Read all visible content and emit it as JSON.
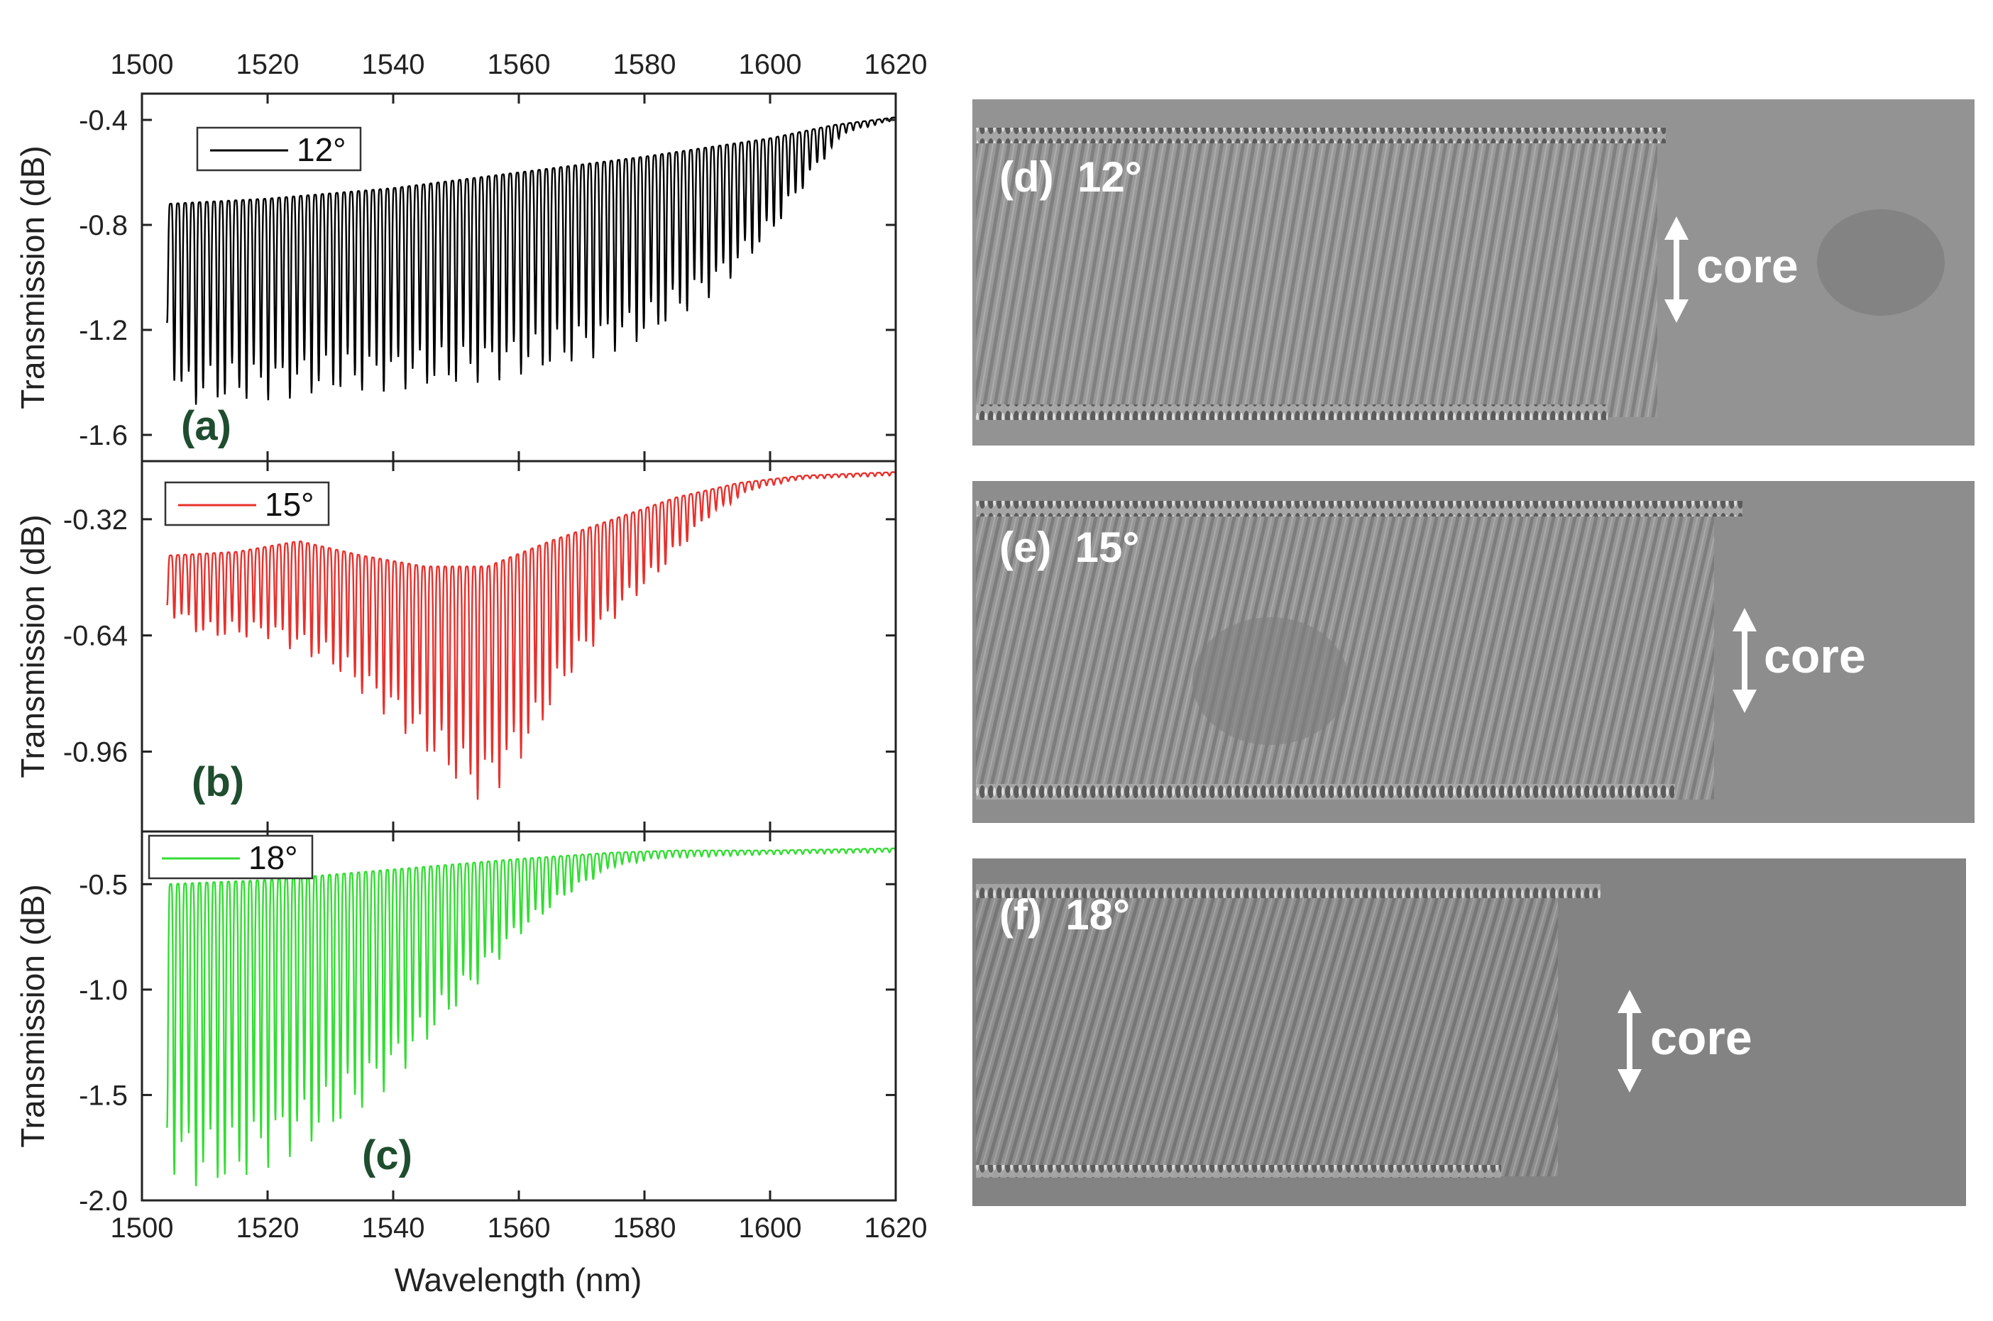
{
  "chart_data": [
    {
      "type": "line",
      "panel": "(a)",
      "series": [
        {
          "name": "12°",
          "color": "#000000"
        }
      ],
      "legend_label": "12°",
      "legend_position": "top-left",
      "ylabel": "Transmission (dB)",
      "xlabel": "",
      "xlim": [
        1500,
        1620
      ],
      "ylim": [
        -1.7,
        -0.3
      ],
      "x_ticks": [
        1500,
        1520,
        1540,
        1560,
        1580,
        1600,
        1620
      ],
      "x_tick_labels": [
        "1500",
        "1520",
        "1540",
        "1560",
        "1580",
        "1600",
        "1620"
      ],
      "x_tick_labels_position": "top",
      "y_ticks": [
        -0.4,
        -0.8,
        -1.2,
        -1.6
      ],
      "y_tick_labels": [
        "-0.4",
        "-0.8",
        "-1.2",
        "-1.6"
      ],
      "spectrum": {
        "start_nm": 1504,
        "end_nm": 1620,
        "period_nm": 1.15,
        "upper": [
          [
            1504,
            -0.72
          ],
          [
            1520,
            -0.7
          ],
          [
            1540,
            -0.66
          ],
          [
            1560,
            -0.6
          ],
          [
            1580,
            -0.54
          ],
          [
            1600,
            -0.47
          ],
          [
            1610,
            -0.42
          ],
          [
            1620,
            -0.39
          ]
        ],
        "lower": [
          [
            1504,
            -1.25
          ],
          [
            1506,
            -1.5
          ],
          [
            1520,
            -1.47
          ],
          [
            1535,
            -1.44
          ],
          [
            1550,
            -1.42
          ],
          [
            1565,
            -1.36
          ],
          [
            1580,
            -1.25
          ],
          [
            1592,
            -1.05
          ],
          [
            1600,
            -0.85
          ],
          [
            1607,
            -0.6
          ],
          [
            1612,
            -0.45
          ],
          [
            1620,
            -0.4
          ]
        ]
      }
    },
    {
      "type": "line",
      "panel": "(b)",
      "series": [
        {
          "name": "15°",
          "color": "#e8302c"
        }
      ],
      "legend_label": "15°",
      "legend_position": "top-left",
      "ylabel": "Transmission (dB)",
      "xlabel": "",
      "xlim": [
        1500,
        1620
      ],
      "ylim": [
        -1.18,
        -0.16
      ],
      "x_ticks": [
        1500,
        1520,
        1540,
        1560,
        1580,
        1600,
        1620
      ],
      "y_ticks": [
        -0.32,
        -0.64,
        -0.96
      ],
      "y_tick_labels": [
        "-0.32",
        "-0.64",
        "-0.96"
      ],
      "spectrum": {
        "start_nm": 1504,
        "end_nm": 1620,
        "period_nm": 1.15,
        "upper": [
          [
            1504,
            -0.42
          ],
          [
            1515,
            -0.41
          ],
          [
            1525,
            -0.38
          ],
          [
            1535,
            -0.42
          ],
          [
            1545,
            -0.45
          ],
          [
            1555,
            -0.45
          ],
          [
            1565,
            -0.38
          ],
          [
            1575,
            -0.32
          ],
          [
            1585,
            -0.26
          ],
          [
            1595,
            -0.22
          ],
          [
            1605,
            -0.2
          ],
          [
            1620,
            -0.19
          ]
        ],
        "lower": [
          [
            1504,
            -0.58
          ],
          [
            1510,
            -0.65
          ],
          [
            1520,
            -0.65
          ],
          [
            1530,
            -0.73
          ],
          [
            1540,
            -0.88
          ],
          [
            1548,
            -1.02
          ],
          [
            1553,
            -1.1
          ],
          [
            1556,
            -1.08
          ],
          [
            1562,
            -0.95
          ],
          [
            1568,
            -0.76
          ],
          [
            1575,
            -0.6
          ],
          [
            1582,
            -0.48
          ],
          [
            1590,
            -0.32
          ],
          [
            1597,
            -0.24
          ],
          [
            1605,
            -0.21
          ],
          [
            1620,
            -0.2
          ]
        ]
      }
    },
    {
      "type": "line",
      "panel": "(c)",
      "series": [
        {
          "name": "18°",
          "color": "#33dd33"
        }
      ],
      "legend_label": "18°",
      "legend_position": "top-left",
      "ylabel": "Transmission (dB)",
      "xlabel": "Wavelength (nm)",
      "xlim": [
        1500,
        1620
      ],
      "ylim": [
        -2.0,
        -0.25
      ],
      "x_ticks": [
        1500,
        1520,
        1540,
        1560,
        1580,
        1600,
        1620
      ],
      "x_tick_labels": [
        "1500",
        "1520",
        "1540",
        "1560",
        "1580",
        "1600",
        "1620"
      ],
      "y_ticks": [
        -0.5,
        -1.0,
        -1.5,
        -2.0
      ],
      "y_tick_labels": [
        "-0.5",
        "-1.0",
        "-1.5",
        "-2.0"
      ],
      "spectrum": {
        "start_nm": 1504,
        "end_nm": 1620,
        "period_nm": 1.15,
        "upper": [
          [
            1504,
            -0.5
          ],
          [
            1520,
            -0.48
          ],
          [
            1540,
            -0.43
          ],
          [
            1560,
            -0.38
          ],
          [
            1575,
            -0.35
          ],
          [
            1585,
            -0.34
          ],
          [
            1600,
            -0.34
          ],
          [
            1620,
            -0.33
          ]
        ],
        "lower": [
          [
            1504,
            -1.85
          ],
          [
            1508,
            -1.95
          ],
          [
            1514,
            -1.95
          ],
          [
            1520,
            -1.85
          ],
          [
            1530,
            -1.7
          ],
          [
            1540,
            -1.45
          ],
          [
            1550,
            -1.1
          ],
          [
            1560,
            -0.75
          ],
          [
            1568,
            -0.55
          ],
          [
            1575,
            -0.42
          ],
          [
            1582,
            -0.38
          ],
          [
            1600,
            -0.36
          ],
          [
            1620,
            -0.35
          ]
        ]
      }
    }
  ],
  "micrographs": [
    {
      "label": "(d)  12°",
      "core_label": "core"
    },
    {
      "label": "(e)  15°",
      "core_label": "core"
    },
    {
      "label": "(f)  18°",
      "core_label": "core"
    }
  ]
}
